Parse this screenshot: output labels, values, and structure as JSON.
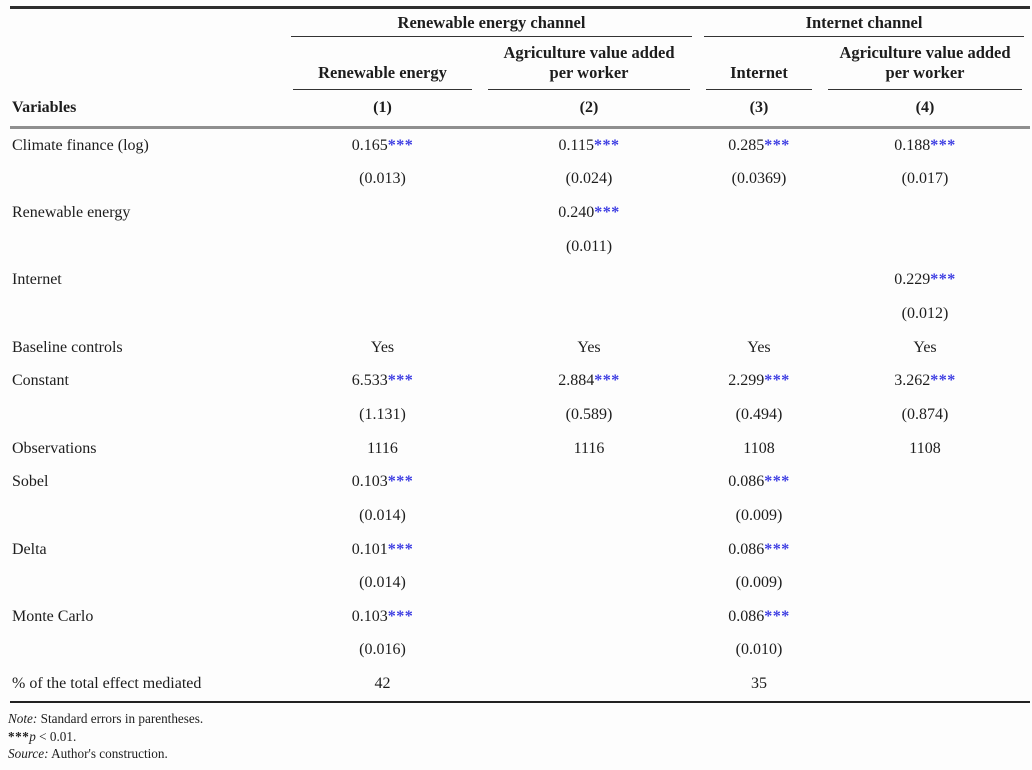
{
  "table": {
    "variables_label": "Variables",
    "groups": [
      {
        "label": "Renewable energy channel"
      },
      {
        "label": "Internet channel"
      }
    ],
    "columns": [
      {
        "label": "Renewable energy",
        "number": "(1)"
      },
      {
        "label": "Agriculture value added per worker",
        "number": "(2)"
      },
      {
        "label": "Internet",
        "number": "(3)"
      },
      {
        "label": "Agriculture value added per worker",
        "number": "(4)"
      }
    ],
    "rows": [
      {
        "label": "Climate finance (log)",
        "cells": [
          "0.165***",
          "0.115***",
          "0.285***",
          "0.188***"
        ]
      },
      {
        "label": "",
        "cells": [
          "(0.013)",
          "(0.024)",
          "(0.0369)",
          "(0.017)"
        ]
      },
      {
        "label": "Renewable energy",
        "cells": [
          "",
          "0.240***",
          "",
          ""
        ]
      },
      {
        "label": "",
        "cells": [
          "",
          "(0.011)",
          "",
          ""
        ]
      },
      {
        "label": "Internet",
        "cells": [
          "",
          "",
          "",
          "0.229***"
        ]
      },
      {
        "label": "",
        "cells": [
          "",
          "",
          "",
          "(0.012)"
        ]
      },
      {
        "label": "Baseline controls",
        "cells": [
          "Yes",
          "Yes",
          "Yes",
          "Yes"
        ]
      },
      {
        "label": "Constant",
        "cells": [
          "6.533***",
          "2.884***",
          "2.299***",
          "3.262***"
        ]
      },
      {
        "label": "",
        "cells": [
          "(1.131)",
          "(0.589)",
          "(0.494)",
          "(0.874)"
        ]
      },
      {
        "label": "Observations",
        "cells": [
          "1116",
          "1116",
          "1108",
          "1108"
        ]
      },
      {
        "label": "Sobel",
        "cells": [
          "0.103***",
          "",
          "0.086***",
          ""
        ]
      },
      {
        "label": "",
        "cells": [
          "(0.014)",
          "",
          "(0.009)",
          ""
        ]
      },
      {
        "label": "Delta",
        "cells": [
          "0.101***",
          "",
          "0.086***",
          ""
        ]
      },
      {
        "label": "",
        "cells": [
          "(0.014)",
          "",
          "(0.009)",
          ""
        ]
      },
      {
        "label": "Monte Carlo",
        "cells": [
          "0.103***",
          "",
          "0.086***",
          ""
        ]
      },
      {
        "label": "",
        "cells": [
          "(0.016)",
          "",
          "(0.010)",
          ""
        ]
      },
      {
        "label": "% of the total effect mediated",
        "cells": [
          "42",
          "",
          "35",
          ""
        ]
      }
    ]
  },
  "notes": {
    "note_label": "Note:",
    "note_text": " Standard errors in parentheses.",
    "sig_stars": "***",
    "sig_var": "p",
    "sig_rest": " < 0.01.",
    "source_label": "Source:",
    "source_text": " Author's construction."
  },
  "colors": {
    "star_blue": "#3c3ce2",
    "text": "#1d1d1d",
    "rule_dark": "#2e2e2e",
    "rule_gray": "#8f8f8f"
  }
}
